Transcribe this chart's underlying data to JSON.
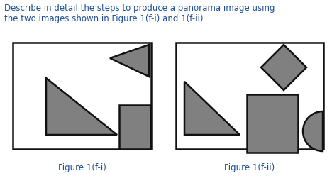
{
  "title_text": "Describe in detail the steps to produce a panorama image using\nthe two images shown in Figure 1(f-i) and 1(f-ii).",
  "title_color": "#1f4e96",
  "title_fontsize": 8.5,
  "label_color": "#1f4e96",
  "label_fontsize": 8.5,
  "shape_fill": "#808080",
  "shape_edge": "#111111",
  "bg_fill": "#ffffff",
  "fig1_label": "Figure 1(f-i)",
  "fig2_label": "Figure 1(f-ii)",
  "lw": 1.8
}
